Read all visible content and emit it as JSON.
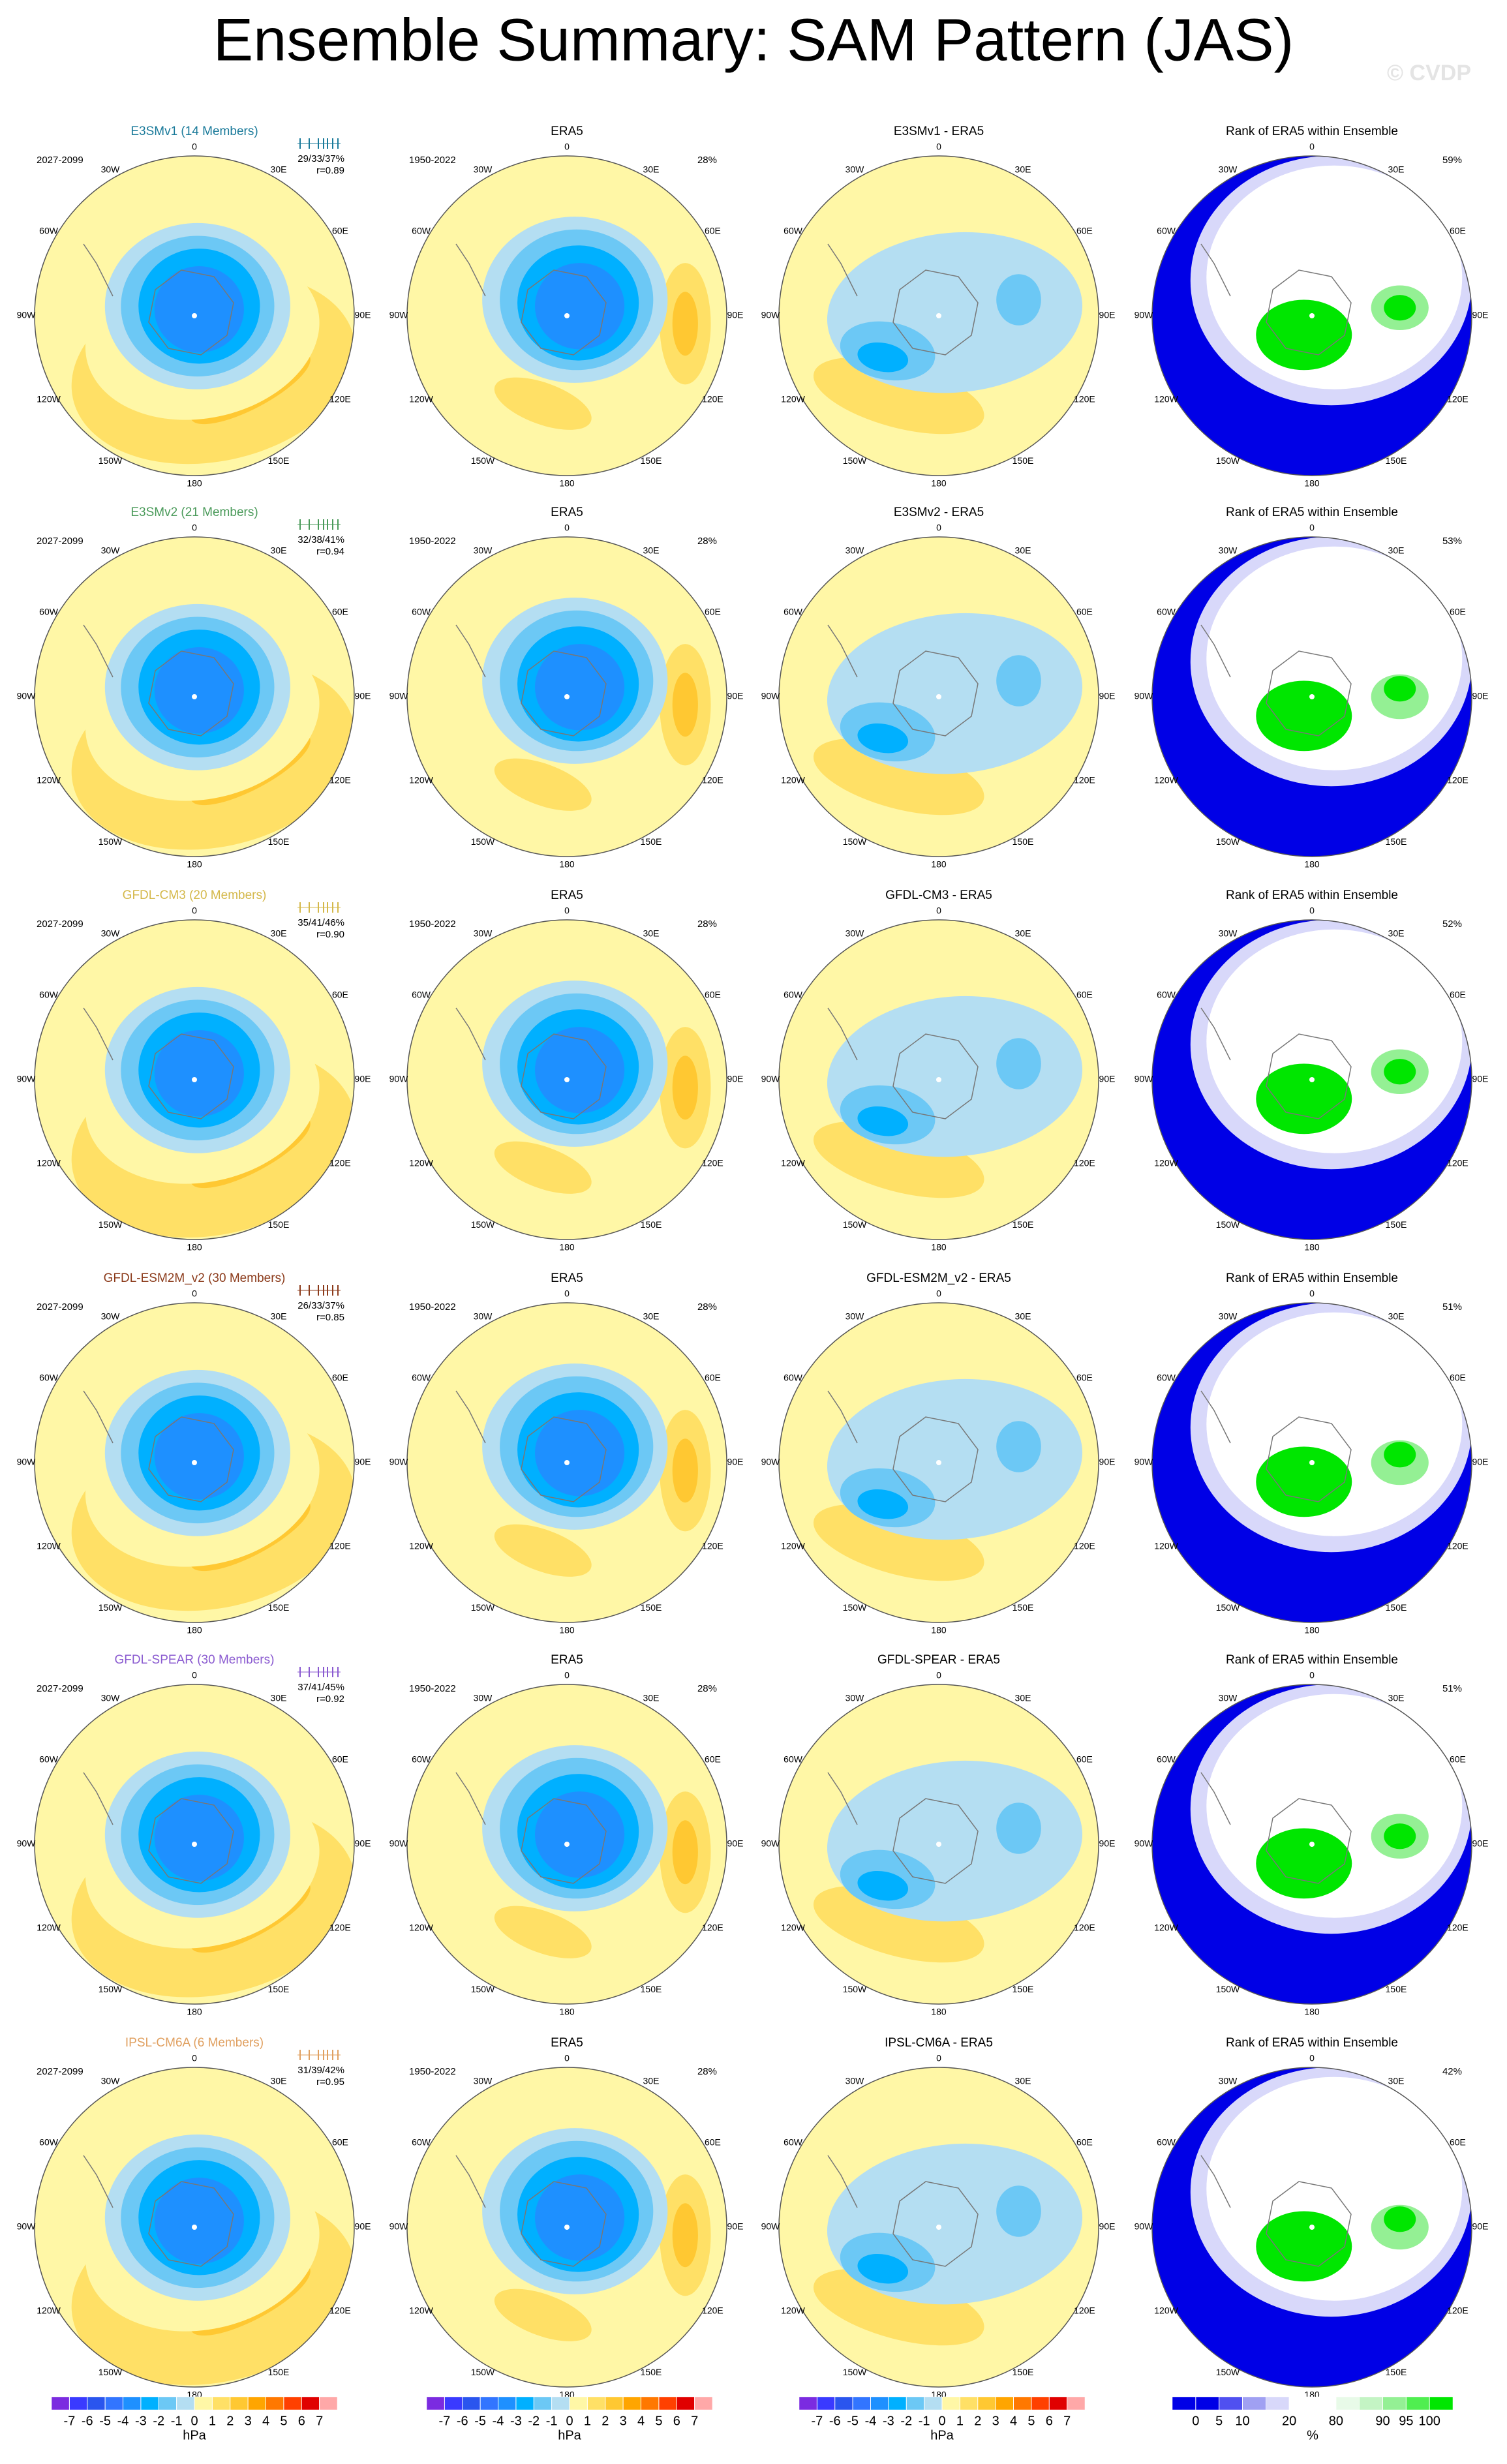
{
  "title": "Ensemble Summary: SAM Pattern (JAS)",
  "watermark": "© CVDP",
  "longitude_labels": [
    "0",
    "30E",
    "60E",
    "90E",
    "120E",
    "150E",
    "180",
    "150W",
    "120W",
    "90W",
    "60W",
    "30W"
  ],
  "rows": [
    {
      "model": {
        "title": "E3SMv1 (14 Members)",
        "color": "#1a7a9a",
        "period": "2027-2099",
        "stats": "29/33/37%",
        "r": "r=0.89"
      },
      "era5": {
        "title": "ERA5",
        "period": "1950-2022",
        "variance": "28%"
      },
      "difference": {
        "title": "E3SMv1 - ERA5"
      },
      "rank": {
        "title": "Rank of ERA5 within Ensemble",
        "percent": "59%"
      }
    },
    {
      "model": {
        "title": "E3SMv2 (21 Members)",
        "color": "#4a9a5a",
        "period": "2027-2099",
        "stats": "32/38/41%",
        "r": "r=0.94"
      },
      "era5": {
        "title": "ERA5",
        "period": "1950-2022",
        "variance": "28%"
      },
      "difference": {
        "title": "E3SMv2 - ERA5"
      },
      "rank": {
        "title": "Rank of ERA5 within Ensemble",
        "percent": "53%"
      }
    },
    {
      "model": {
        "title": "GFDL-CM3 (20 Members)",
        "color": "#d4b84a",
        "period": "2027-2099",
        "stats": "35/41/46%",
        "r": "r=0.90"
      },
      "era5": {
        "title": "ERA5",
        "period": "1950-2022",
        "variance": "28%"
      },
      "difference": {
        "title": "GFDL-CM3 - ERA5"
      },
      "rank": {
        "title": "Rank of ERA5 within Ensemble",
        "percent": "52%"
      }
    },
    {
      "model": {
        "title": "GFDL-ESM2M_v2 (30 Members)",
        "color": "#8b3a1a",
        "period": "2027-2099",
        "stats": "26/33/37%",
        "r": "r=0.85"
      },
      "era5": {
        "title": "ERA5",
        "period": "1950-2022",
        "variance": "28%"
      },
      "difference": {
        "title": "GFDL-ESM2M_v2 - ERA5"
      },
      "rank": {
        "title": "Rank of ERA5 within Ensemble",
        "percent": "51%"
      }
    },
    {
      "model": {
        "title": "GFDL-SPEAR (30 Members)",
        "color": "#8a5ad0",
        "period": "2027-2099",
        "stats": "37/41/45%",
        "r": "r=0.92"
      },
      "era5": {
        "title": "ERA5",
        "period": "1950-2022",
        "variance": "28%"
      },
      "difference": {
        "title": "GFDL-SPEAR - ERA5"
      },
      "rank": {
        "title": "Rank of ERA5 within Ensemble",
        "percent": "51%"
      }
    },
    {
      "model": {
        "title": "IPSL-CM6A (6 Members)",
        "color": "#e0a060",
        "period": "2027-2099",
        "stats": "31/39/42%",
        "r": "r=0.95"
      },
      "era5": {
        "title": "ERA5",
        "period": "1950-2022",
        "variance": "28%"
      },
      "difference": {
        "title": "IPSL-CM6A - ERA5"
      },
      "rank": {
        "title": "Rank of ERA5 within Ensemble",
        "percent": "42%"
      }
    }
  ],
  "pressure_colorbar": {
    "levels": [
      -7,
      -6,
      -5,
      -4,
      -3,
      -2,
      -1,
      0,
      1,
      2,
      3,
      4,
      5,
      6,
      7
    ],
    "unit": "hPa",
    "colors": [
      "#7b2be0",
      "#3a3aff",
      "#2a55ee",
      "#3275ff",
      "#1e90ff",
      "#00b0ff",
      "#6cc8f5",
      "#b4def2",
      "#fff7a6",
      "#ffe066",
      "#ffc832",
      "#ffa500",
      "#ff7800",
      "#ff4000",
      "#e00000",
      "#ffa8a8"
    ]
  },
  "rank_colorbar": {
    "levels": [
      0,
      5,
      10,
      20,
      80,
      90,
      95,
      100
    ],
    "unit": "%",
    "colors": [
      "#0000e6",
      "#0000e6",
      "#5050f0",
      "#a0a0f2",
      "#d8d8fa",
      "#ffffff",
      "#ffffff",
      "#e8fae8",
      "#c4f4c4",
      "#94f094",
      "#50ee50",
      "#00e600"
    ]
  }
}
